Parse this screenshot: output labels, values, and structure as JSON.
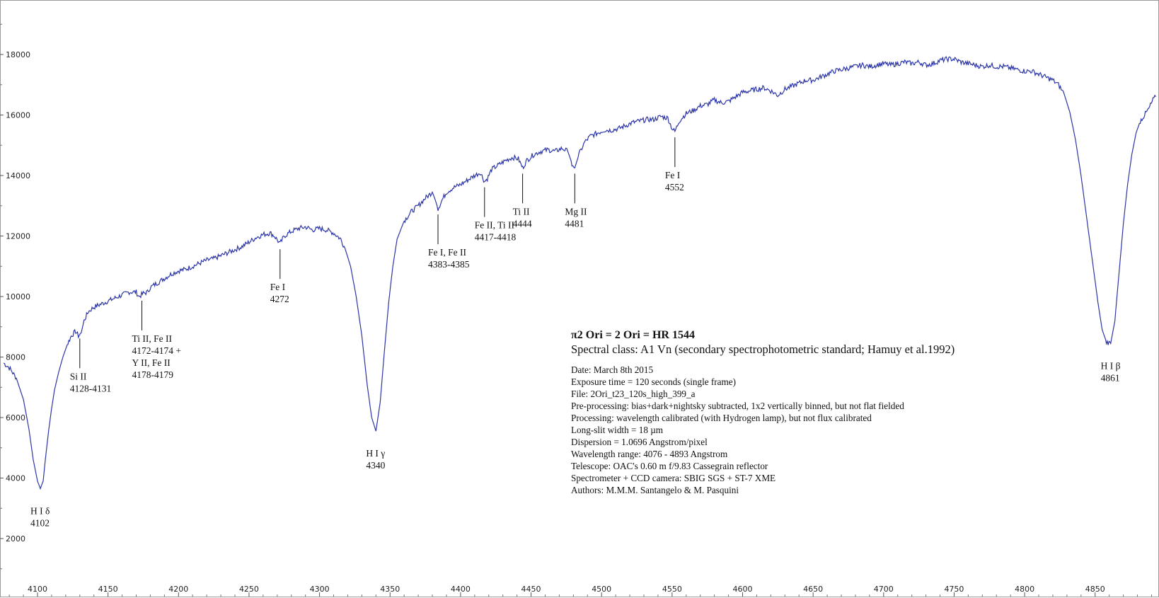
{
  "chart_data": {
    "type": "line",
    "title": "π2 Ori = 2 Ori = HR 1544",
    "subtitle": "Spectral class:  A1 Vn  (secondary spectrophotometric standard; Hamuy et al.1992)",
    "info_lines": [
      "Date: March 8th 2015",
      "Exposure time = 120 seconds (single frame)",
      "File: 2Ori_t23_120s_high_399_a",
      "Pre-processing: bias+dark+nightsky subtracted, 1x2 vertically binned, but not flat fielded",
      "Processing: wavelength calibrated (with Hydrogen lamp), but not flux calibrated",
      "Long-slit width = 18 µm",
      "Dispersion = 1.0696 Angstrom/pixel",
      "Wavelength range: 4076 - 4893 Angstrom",
      "Telescope: OAC's 0.60 m f/9.83 Cassegrain reflector",
      "Spectrometer + CCD camera: SBIG SGS + ST-7 XME",
      "Authors: M.M.M. Santangelo & M. Pasquini"
    ],
    "xlabel": "",
    "ylabel": "",
    "xlim": [
      4076,
      4893
    ],
    "ylim": [
      200,
      19700
    ],
    "x_ticks": [
      4100,
      4150,
      4200,
      4250,
      4300,
      4350,
      4400,
      4450,
      4500,
      4550,
      4600,
      4650,
      4700,
      4750,
      4800,
      4850
    ],
    "y_ticks": [
      2000,
      4000,
      6000,
      8000,
      10000,
      12000,
      14000,
      16000,
      18000
    ],
    "line_color": "#2b35a8",
    "series": [
      {
        "name": "",
        "points": [
          [
            4076,
            7800
          ],
          [
            4080,
            7650
          ],
          [
            4085,
            7300
          ],
          [
            4090,
            6600
          ],
          [
            4094,
            5600
          ],
          [
            4097,
            4600
          ],
          [
            4100,
            3900
          ],
          [
            4102,
            3650
          ],
          [
            4104,
            3900
          ],
          [
            4106,
            4800
          ],
          [
            4108,
            5600
          ],
          [
            4110,
            6300
          ],
          [
            4112,
            6900
          ],
          [
            4115,
            7500
          ],
          [
            4118,
            8000
          ],
          [
            4121,
            8400
          ],
          [
            4124,
            8700
          ],
          [
            4127,
            8850
          ],
          [
            4129,
            8700
          ],
          [
            4131,
            8800
          ],
          [
            4133,
            9200
          ],
          [
            4136,
            9500
          ],
          [
            4140,
            9650
          ],
          [
            4145,
            9750
          ],
          [
            4150,
            9850
          ],
          [
            4155,
            9950
          ],
          [
            4160,
            10050
          ],
          [
            4165,
            10150
          ],
          [
            4170,
            10150
          ],
          [
            4172,
            10000
          ],
          [
            4175,
            10100
          ],
          [
            4178,
            10150
          ],
          [
            4180,
            10300
          ],
          [
            4185,
            10450
          ],
          [
            4190,
            10600
          ],
          [
            4195,
            10750
          ],
          [
            4200,
            10850
          ],
          [
            4205,
            10900
          ],
          [
            4210,
            11000
          ],
          [
            4215,
            11100
          ],
          [
            4220,
            11200
          ],
          [
            4225,
            11250
          ],
          [
            4230,
            11350
          ],
          [
            4235,
            11450
          ],
          [
            4240,
            11550
          ],
          [
            4245,
            11650
          ],
          [
            4250,
            11800
          ],
          [
            4255,
            11950
          ],
          [
            4260,
            12050
          ],
          [
            4265,
            12100
          ],
          [
            4268,
            12000
          ],
          [
            4272,
            11750
          ],
          [
            4275,
            12000
          ],
          [
            4280,
            12150
          ],
          [
            4285,
            12250
          ],
          [
            4290,
            12300
          ],
          [
            4295,
            12200
          ],
          [
            4300,
            12250
          ],
          [
            4305,
            12200
          ],
          [
            4310,
            12100
          ],
          [
            4315,
            11900
          ],
          [
            4318,
            11600
          ],
          [
            4322,
            11000
          ],
          [
            4326,
            10000
          ],
          [
            4330,
            8700
          ],
          [
            4334,
            7000
          ],
          [
            4337,
            6000
          ],
          [
            4340,
            5550
          ],
          [
            4343,
            6500
          ],
          [
            4346,
            8200
          ],
          [
            4349,
            9800
          ],
          [
            4352,
            11000
          ],
          [
            4355,
            11900
          ],
          [
            4360,
            12500
          ],
          [
            4365,
            12800
          ],
          [
            4370,
            13000
          ],
          [
            4375,
            13250
          ],
          [
            4380,
            13450
          ],
          [
            4382,
            13200
          ],
          [
            4384,
            12900
          ],
          [
            4387,
            13200
          ],
          [
            4390,
            13450
          ],
          [
            4395,
            13600
          ],
          [
            4400,
            13700
          ],
          [
            4405,
            13850
          ],
          [
            4410,
            14000
          ],
          [
            4414,
            14100
          ],
          [
            4417,
            13800
          ],
          [
            4419,
            13900
          ],
          [
            4422,
            14200
          ],
          [
            4427,
            14350
          ],
          [
            4432,
            14500
          ],
          [
            4437,
            14600
          ],
          [
            4441,
            14550
          ],
          [
            4444,
            14250
          ],
          [
            4447,
            14500
          ],
          [
            4452,
            14700
          ],
          [
            4457,
            14800
          ],
          [
            4462,
            14850
          ],
          [
            4467,
            14800
          ],
          [
            4472,
            14900
          ],
          [
            4476,
            14800
          ],
          [
            4479,
            14400
          ],
          [
            4481,
            14250
          ],
          [
            4484,
            14700
          ],
          [
            4488,
            15100
          ],
          [
            4492,
            15300
          ],
          [
            4497,
            15400
          ],
          [
            4502,
            15500
          ],
          [
            4507,
            15500
          ],
          [
            4512,
            15550
          ],
          [
            4517,
            15650
          ],
          [
            4522,
            15750
          ],
          [
            4527,
            15800
          ],
          [
            4532,
            15850
          ],
          [
            4537,
            15850
          ],
          [
            4542,
            15950
          ],
          [
            4547,
            15900
          ],
          [
            4550,
            15550
          ],
          [
            4552,
            15450
          ],
          [
            4555,
            15800
          ],
          [
            4560,
            16050
          ],
          [
            4565,
            16150
          ],
          [
            4570,
            16300
          ],
          [
            4575,
            16350
          ],
          [
            4580,
            16500
          ],
          [
            4585,
            16400
          ],
          [
            4590,
            16450
          ],
          [
            4595,
            16600
          ],
          [
            4600,
            16750
          ],
          [
            4605,
            16800
          ],
          [
            4610,
            16850
          ],
          [
            4615,
            16900
          ],
          [
            4620,
            16800
          ],
          [
            4625,
            16650
          ],
          [
            4630,
            16850
          ],
          [
            4635,
            16950
          ],
          [
            4640,
            17050
          ],
          [
            4645,
            17150
          ],
          [
            4650,
            17150
          ],
          [
            4655,
            17250
          ],
          [
            4660,
            17350
          ],
          [
            4665,
            17450
          ],
          [
            4670,
            17500
          ],
          [
            4675,
            17550
          ],
          [
            4680,
            17600
          ],
          [
            4685,
            17650
          ],
          [
            4690,
            17600
          ],
          [
            4695,
            17650
          ],
          [
            4700,
            17700
          ],
          [
            4705,
            17650
          ],
          [
            4710,
            17700
          ],
          [
            4715,
            17750
          ],
          [
            4720,
            17700
          ],
          [
            4725,
            17750
          ],
          [
            4730,
            17650
          ],
          [
            4735,
            17700
          ],
          [
            4740,
            17800
          ],
          [
            4745,
            17850
          ],
          [
            4750,
            17850
          ],
          [
            4755,
            17750
          ],
          [
            4760,
            17700
          ],
          [
            4765,
            17650
          ],
          [
            4770,
            17600
          ],
          [
            4775,
            17650
          ],
          [
            4780,
            17600
          ],
          [
            4785,
            17600
          ],
          [
            4790,
            17550
          ],
          [
            4795,
            17500
          ],
          [
            4800,
            17450
          ],
          [
            4805,
            17450
          ],
          [
            4810,
            17350
          ],
          [
            4815,
            17250
          ],
          [
            4820,
            17150
          ],
          [
            4824,
            17000
          ],
          [
            4828,
            16700
          ],
          [
            4832,
            16100
          ],
          [
            4836,
            15200
          ],
          [
            4840,
            14000
          ],
          [
            4844,
            12600
          ],
          [
            4848,
            11200
          ],
          [
            4852,
            9800
          ],
          [
            4855,
            8900
          ],
          [
            4858,
            8500
          ],
          [
            4861,
            8450
          ],
          [
            4864,
            9200
          ],
          [
            4867,
            10800
          ],
          [
            4870,
            12400
          ],
          [
            4873,
            13700
          ],
          [
            4876,
            14700
          ],
          [
            4879,
            15400
          ],
          [
            4882,
            15800
          ],
          [
            4885,
            16000
          ],
          [
            4888,
            16200
          ],
          [
            4891,
            16500
          ],
          [
            4893,
            16600
          ]
        ]
      }
    ],
    "annotations": [
      {
        "lines": [
          "H I  δ",
          "4102"
        ],
        "x": 4102,
        "y": 3650,
        "marker": false
      },
      {
        "lines": [
          "Si II",
          "4128-4131"
        ],
        "x": 4130,
        "y": 8800,
        "marker": true
      },
      {
        "lines": [
          "Ti II, Fe II",
          "4172-4174 +",
          "Y II, Fe II",
          "4178-4179"
        ],
        "x": 4174,
        "y": 10050,
        "marker": true
      },
      {
        "lines": [
          "Fe I",
          "4272"
        ],
        "x": 4272,
        "y": 11750,
        "marker": true
      },
      {
        "lines": [
          "H I  γ",
          "4340"
        ],
        "x": 4340,
        "y": 5550,
        "marker": false
      },
      {
        "lines": [
          "Fe I, Fe II",
          "4383-4385"
        ],
        "x": 4384,
        "y": 12900,
        "marker": true
      },
      {
        "lines": [
          "Fe II, Ti II",
          "4417-4418"
        ],
        "x": 4417,
        "y": 13800,
        "marker": true
      },
      {
        "lines": [
          "Ti II",
          "4444"
        ],
        "x": 4444,
        "y": 14250,
        "marker": true
      },
      {
        "lines": [
          "Mg II",
          "4481"
        ],
        "x": 4481,
        "y": 14250,
        "marker": true
      },
      {
        "lines": [
          "Fe I",
          "4552"
        ],
        "x": 4552,
        "y": 15450,
        "marker": true
      },
      {
        "lines": [
          "H I  β",
          "4861"
        ],
        "x": 4861,
        "y": 8450,
        "marker": false
      }
    ]
  }
}
